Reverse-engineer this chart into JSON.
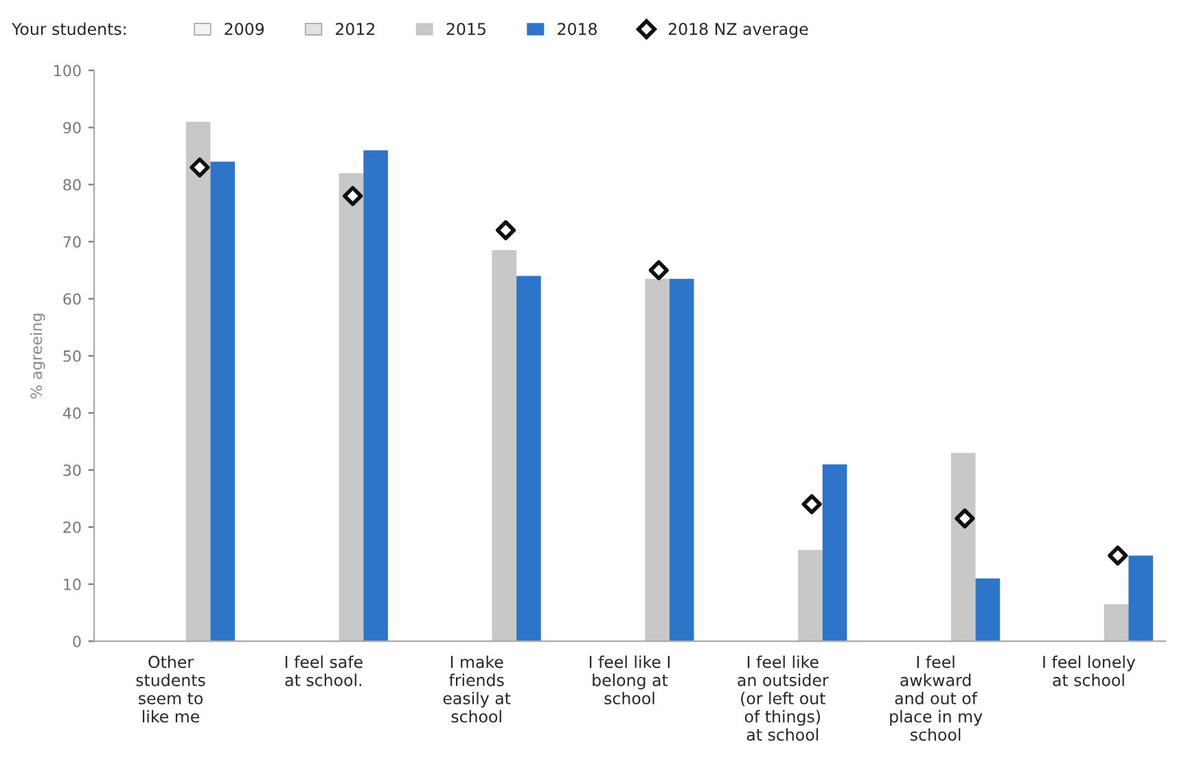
{
  "chart_data": {
    "type": "bar",
    "ylabel": "% agreeing",
    "legend_title": "Your students:",
    "legend": "top",
    "categories": [
      "Other students seem to like me",
      "I feel safe at school.",
      "I make friends easily at school",
      "I feel like I belong at school",
      "I feel like an outsider (or left out of things) at school",
      "I feel awkward and out of place in my school",
      "I feel lonely at school"
    ],
    "series": [
      {
        "name": "2009",
        "color": "#f4f4f4",
        "values": [
          null,
          null,
          null,
          null,
          null,
          null,
          null
        ]
      },
      {
        "name": "2012",
        "color": "#e2e2e2",
        "values": [
          null,
          null,
          null,
          null,
          null,
          null,
          null
        ]
      },
      {
        "name": "2015",
        "color": "#c8c8c8",
        "values": [
          91,
          82,
          68.5,
          63.5,
          16,
          33,
          6.5
        ]
      },
      {
        "name": "2018",
        "color": "#2e75c9",
        "values": [
          84,
          86,
          64,
          63.5,
          31,
          11,
          15
        ]
      },
      {
        "name": "2018 NZ average",
        "type": "scatter",
        "marker": "diamond",
        "color": "#111111",
        "values": [
          83,
          78,
          72,
          65,
          24,
          21.5,
          15
        ]
      }
    ],
    "ylim": [
      0,
      100
    ],
    "yticks": [
      0,
      10,
      20,
      30,
      40,
      50,
      60,
      70,
      80,
      90,
      100
    ],
    "grid": false
  }
}
